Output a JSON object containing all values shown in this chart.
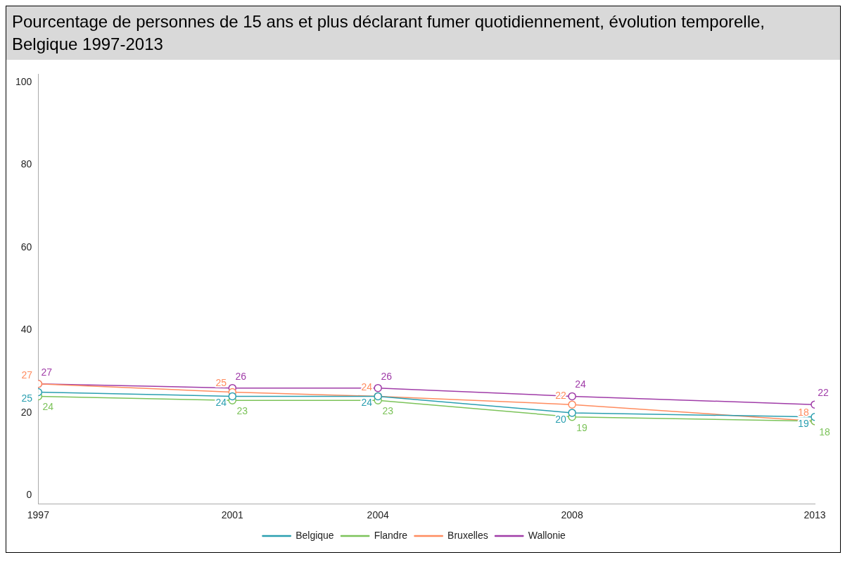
{
  "chart_data": {
    "type": "line",
    "title": "Pourcentage de personnes de 15 ans et plus déclarant fumer quotidiennement, évolution temporelle, Belgique 1997-2013",
    "x": [
      1997,
      2001,
      2004,
      2008,
      2013
    ],
    "series": [
      {
        "name": "Belgique",
        "color": "#2a9fb0",
        "values": [
          25,
          24,
          24,
          20,
          19
        ]
      },
      {
        "name": "Flandre",
        "color": "#7cc35a",
        "values": [
          24,
          23,
          23,
          19,
          18
        ]
      },
      {
        "name": "Bruxelles",
        "color": "#ff8c5f",
        "values": [
          27,
          25,
          24,
          22,
          18
        ]
      },
      {
        "name": "Wallonie",
        "color": "#a03ca8",
        "values": [
          27,
          26,
          26,
          24,
          22
        ]
      }
    ],
    "xlim": [
      1997,
      2013
    ],
    "xticks": [
      1997,
      2001,
      2004,
      2008,
      2013
    ],
    "ylim": [
      -2,
      102
    ],
    "yticks": [
      0,
      20,
      40,
      60,
      80,
      100
    ],
    "grid": false,
    "legend": "bottom",
    "marker": "circle",
    "line_style": "solid",
    "data_labels": true
  }
}
